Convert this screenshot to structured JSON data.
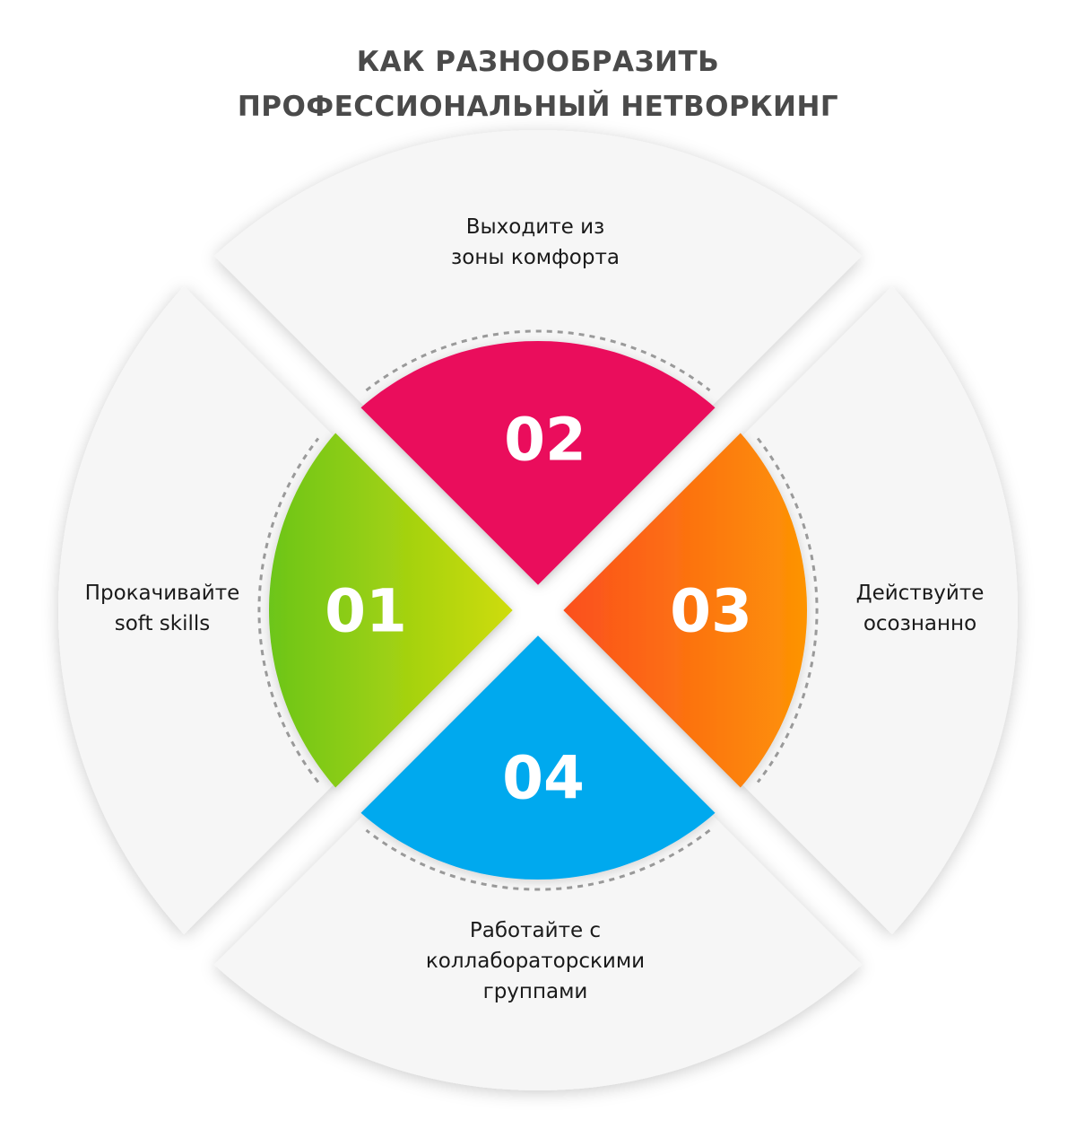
{
  "title": {
    "line1": "КАК РАЗНООБРАЗИТЬ",
    "line2": "ПРОФЕССИОНАЛЬНЫЙ НЕТВОРКИНГ"
  },
  "colors": {
    "step_01": [
      "#6cc51a",
      "#cfdc0a"
    ],
    "step_02": [
      "#ea0a5c",
      "#ea0a5c"
    ],
    "step_03": [
      "#fb4f1e",
      "#fd9404"
    ],
    "step_04": [
      "#03a9ee",
      "#03a9ee"
    ],
    "segment_bg": "#f6f6f6",
    "dashes": "#9a9a9a"
  },
  "steps": [
    {
      "number": "01",
      "text": [
        "Прокачивайте",
        "soft skills"
      ]
    },
    {
      "number": "02",
      "text": [
        "Выходите из",
        "зоны комфорта"
      ]
    },
    {
      "number": "03",
      "text": [
        "Действуйте",
        "осознанно"
      ]
    },
    {
      "number": "04",
      "text": [
        "Работайте с",
        "коллабораторскими",
        "группами"
      ]
    }
  ]
}
